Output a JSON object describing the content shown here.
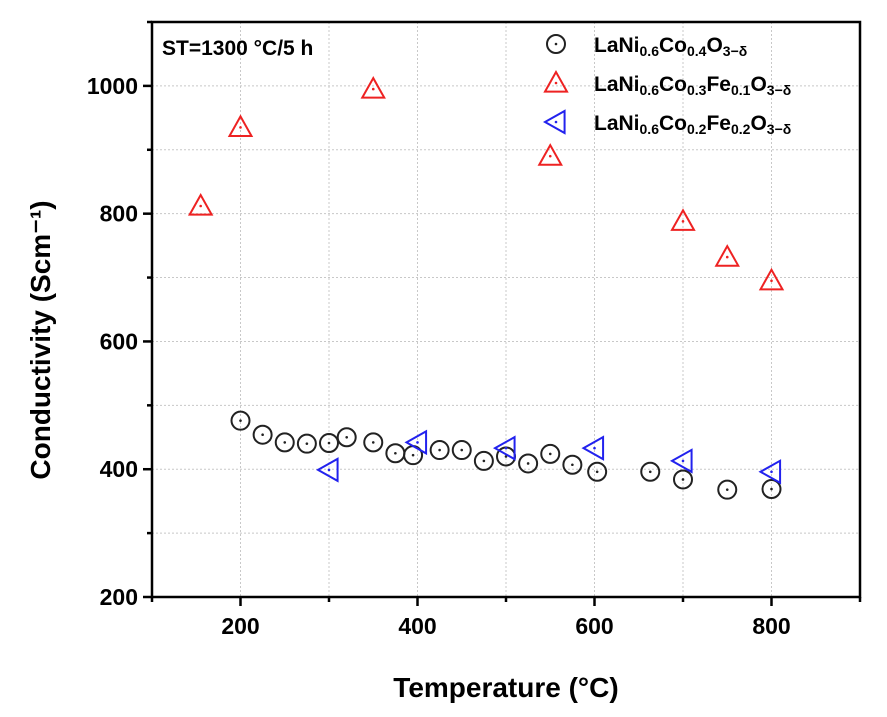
{
  "chart_data": {
    "type": "scatter",
    "title": "",
    "annotation": "ST=1300 °C/5 h",
    "xlabel": "Temperature (°C)",
    "ylabel": "Conductivity (Scm⁻¹)",
    "xlim": [
      100,
      900
    ],
    "ylim": [
      200,
      1100
    ],
    "xticks": [
      200,
      400,
      600,
      800
    ],
    "yticks": [
      200,
      400,
      600,
      800,
      1000
    ],
    "grid": true,
    "legend_position": "top-right",
    "series": [
      {
        "name": "LaNi0.6Co0.4O3−δ",
        "label_parts": [
          {
            "t": "LaNi",
            "sub": false
          },
          {
            "t": "0.6",
            "sub": true
          },
          {
            "t": "Co",
            "sub": false
          },
          {
            "t": "0.4",
            "sub": true
          },
          {
            "t": "O",
            "sub": false
          },
          {
            "t": "3−δ",
            "sub": true
          }
        ],
        "marker": "circle",
        "color": "#222222",
        "x": [
          200,
          225,
          250,
          275,
          300,
          320,
          350,
          375,
          395,
          425,
          450,
          475,
          500,
          525,
          550,
          575,
          603,
          663,
          700,
          750,
          800
        ],
        "y": [
          476,
          454,
          442,
          440,
          441,
          450,
          442,
          425,
          422,
          430,
          430,
          413,
          420,
          409,
          424,
          407,
          396,
          396,
          384,
          368,
          369
        ]
      },
      {
        "name": "LaNi0.6Co0.3Fe0.1O3−δ",
        "label_parts": [
          {
            "t": "LaNi",
            "sub": false
          },
          {
            "t": "0.6",
            "sub": true
          },
          {
            "t": "Co",
            "sub": false
          },
          {
            "t": "0.3",
            "sub": true
          },
          {
            "t": "Fe",
            "sub": false
          },
          {
            "t": "0.1",
            "sub": true
          },
          {
            "t": "O",
            "sub": false
          },
          {
            "t": "3−δ",
            "sub": true
          }
        ],
        "marker": "triangle-up",
        "color": "#ee2222",
        "x": [
          155,
          200,
          350,
          550,
          700,
          750,
          800
        ],
        "y": [
          812,
          935,
          995,
          890,
          788,
          732,
          695
        ]
      },
      {
        "name": "LaNi0.6Co0.2Fe0.2O3−δ",
        "label_parts": [
          {
            "t": "LaNi",
            "sub": false
          },
          {
            "t": "0.6",
            "sub": true
          },
          {
            "t": "Co",
            "sub": false
          },
          {
            "t": "0.2",
            "sub": true
          },
          {
            "t": "Fe",
            "sub": false
          },
          {
            "t": "0.2",
            "sub": true
          },
          {
            "t": "O",
            "sub": false
          },
          {
            "t": "3−δ",
            "sub": true
          }
        ],
        "marker": "triangle-left",
        "color": "#2222ee",
        "x": [
          300,
          400,
          500,
          600,
          700,
          800
        ],
        "y": [
          399,
          442,
          433,
          433,
          413,
          396
        ]
      }
    ]
  }
}
